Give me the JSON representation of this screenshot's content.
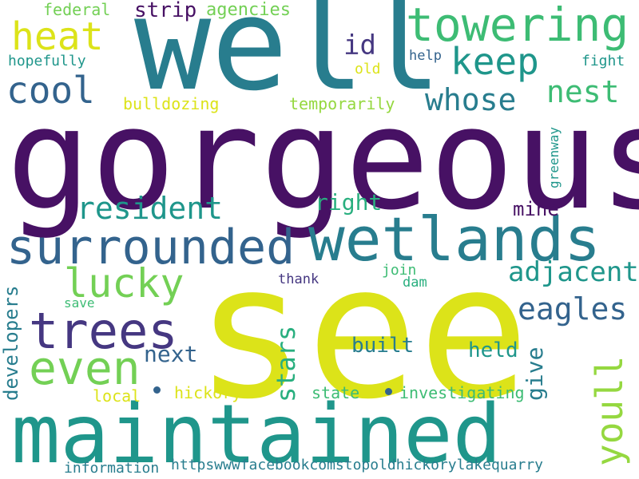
{
  "palette": {
    "dark_purple": "#471164",
    "indigo": "#453781",
    "slate_blue": "#33638d",
    "teal_blue": "#287d8e",
    "teal": "#1f968b",
    "sea_green": "#29af7f",
    "green": "#3dbc74",
    "light_green": "#73d055",
    "lime": "#95d840",
    "yellow": "#dce319",
    "bright_yellow": "#e0e33a"
  },
  "words": {
    "gorgeous": "gorgeous",
    "see": "see",
    "well": "well",
    "maintained": "maintained",
    "wetlands": "wetlands",
    "surrounded": "surrounded",
    "trees": "trees",
    "even": "even",
    "towering": "towering",
    "keep": "keep",
    "heat": "heat",
    "cool": "cool",
    "whose": "whose",
    "nest": "nest",
    "lucky": "lucky",
    "resident": "resident",
    "eagles": "eagles",
    "adjacent": "adjacent",
    "youll": "youll",
    "id": "id",
    "strip": "strip",
    "agencies": "agencies",
    "federal": "federal",
    "hopefully": "hopefully",
    "old": "old",
    "help": "help",
    "fight": "fight",
    "bulldozing": "bulldozing",
    "temporarily": "temporarily",
    "greenway": "greenway",
    "right": "right",
    "mine": "mine",
    "join": "join",
    "thank": "thank",
    "dam": "dam",
    "save": "save",
    "developers": "developers",
    "stars": "stars",
    "built": "built",
    "held": "held",
    "give": "give",
    "next": "next",
    "local": "local",
    "hickory": "hickory",
    "state": "state",
    "investigating": "investigating",
    "information": "information",
    "url": "httpswwwfacebookcomstopoldhickorylakequarry"
  }
}
